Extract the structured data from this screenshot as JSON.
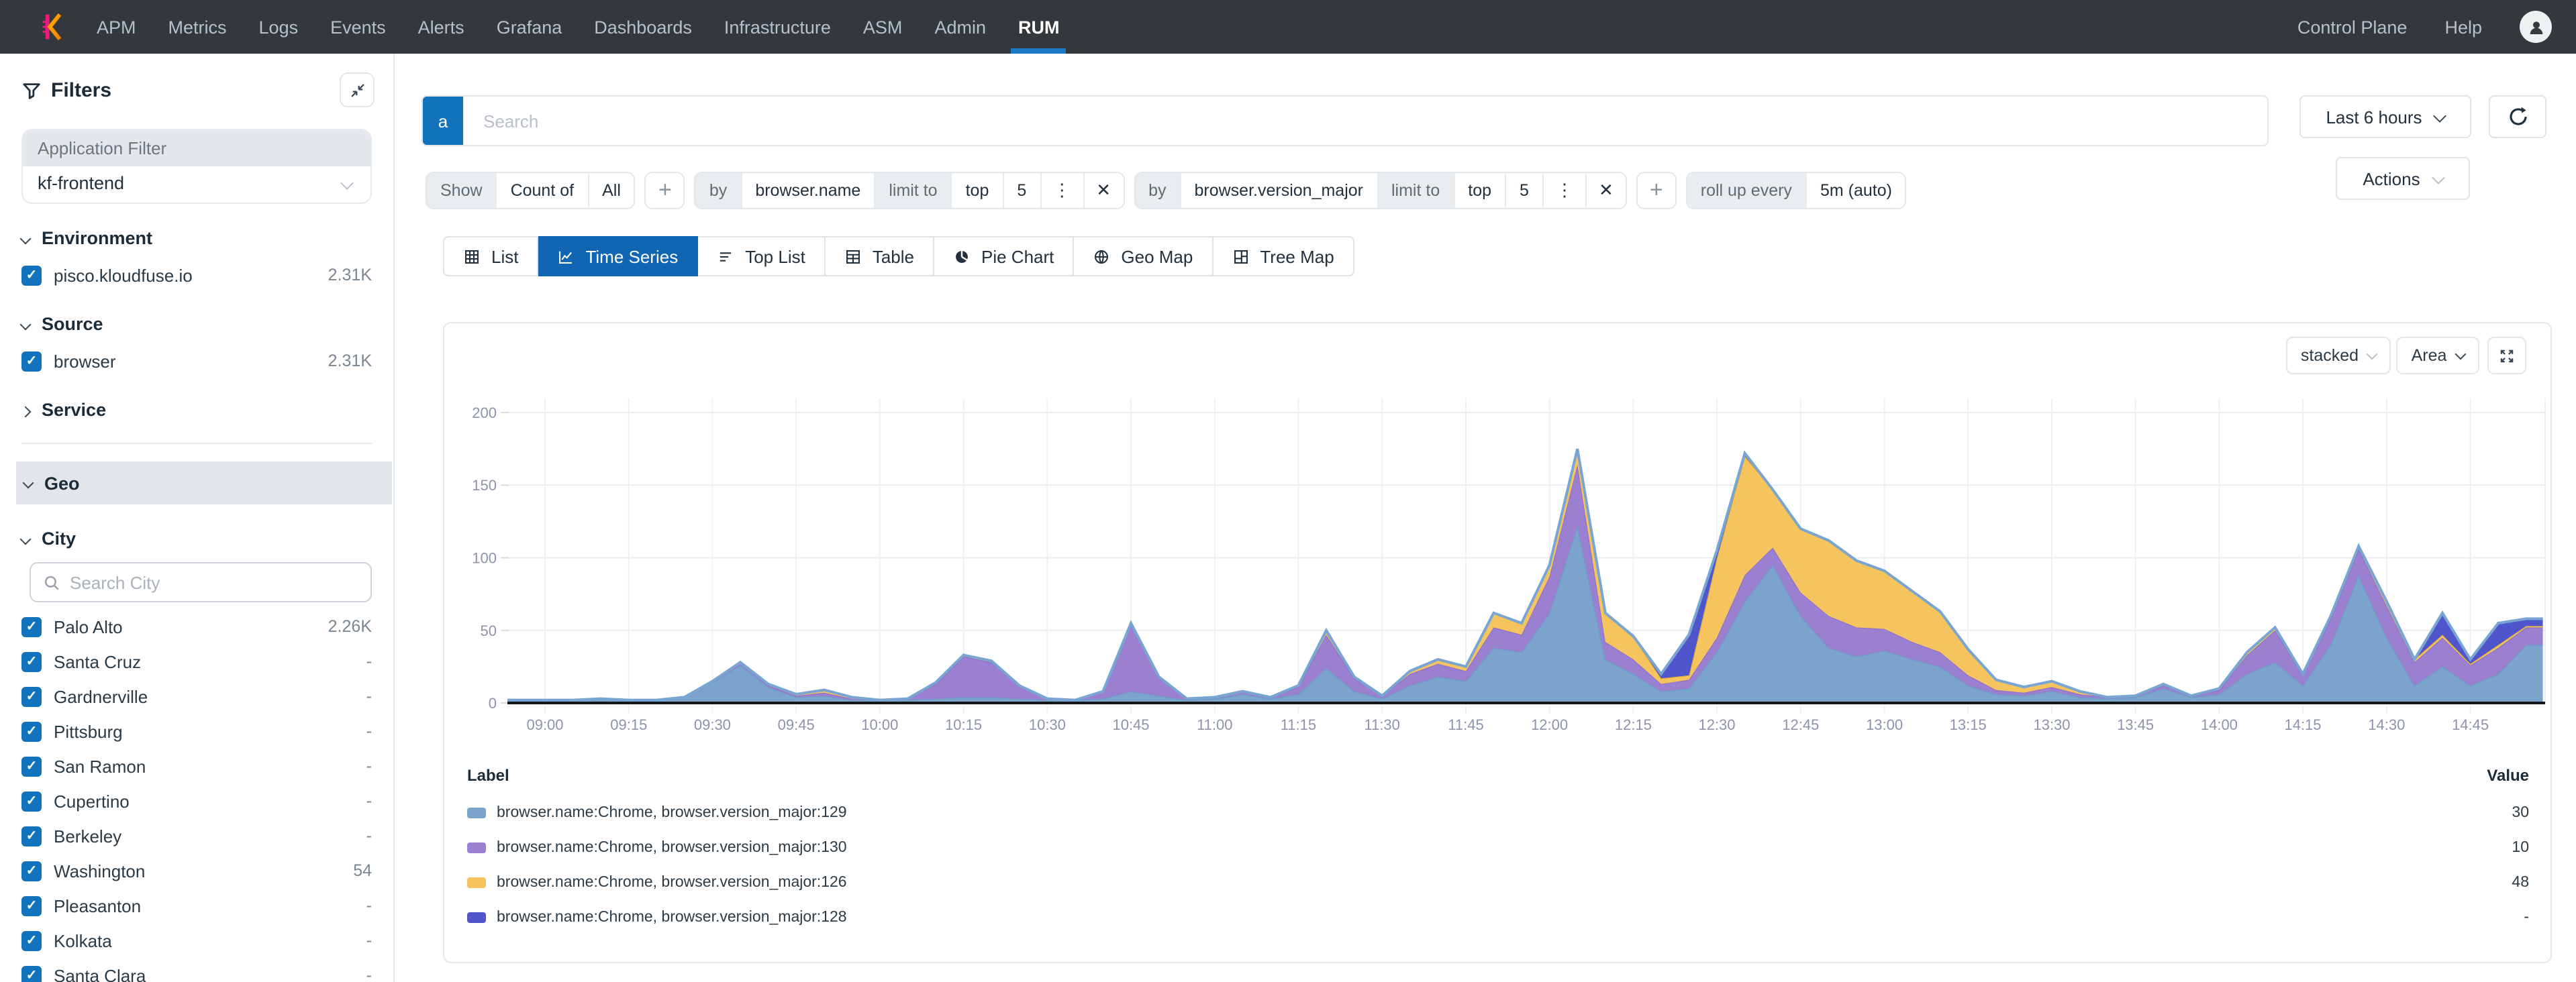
{
  "nav": {
    "items": [
      "APM",
      "Metrics",
      "Logs",
      "Events",
      "Alerts",
      "Grafana",
      "Dashboards",
      "Infrastructure",
      "ASM",
      "Admin",
      "RUM"
    ],
    "active": "RUM",
    "right_items": [
      "Control Plane",
      "Help"
    ],
    "accent": "#1b79c4"
  },
  "sidebar": {
    "title": "Filters",
    "app_filter": {
      "label": "Application Filter",
      "value": "kf-frontend"
    },
    "sections": [
      {
        "label": "Environment",
        "expanded": true,
        "rows": [
          {
            "label": "pisco.kloudfuse.io",
            "count": "2.31K",
            "checked": true
          }
        ]
      },
      {
        "label": "Source",
        "expanded": true,
        "rows": [
          {
            "label": "browser",
            "count": "2.31K",
            "checked": true
          }
        ]
      },
      {
        "label": "Service",
        "expanded": false,
        "rows": []
      }
    ],
    "geo": {
      "label": "Geo"
    },
    "city": {
      "label": "City",
      "search_placeholder": "Search City",
      "rows": [
        {
          "label": "Palo Alto",
          "count": "2.26K",
          "checked": true
        },
        {
          "label": "Santa Cruz",
          "count": "-",
          "checked": true
        },
        {
          "label": "Gardnerville",
          "count": "-",
          "checked": true
        },
        {
          "label": "Pittsburg",
          "count": "-",
          "checked": true
        },
        {
          "label": "San Ramon",
          "count": "-",
          "checked": true
        },
        {
          "label": "Cupertino",
          "count": "-",
          "checked": true
        },
        {
          "label": "Berkeley",
          "count": "-",
          "checked": true
        },
        {
          "label": "Washington",
          "count": "54",
          "checked": true
        },
        {
          "label": "Pleasanton",
          "count": "-",
          "checked": true
        },
        {
          "label": "Kolkata",
          "count": "-",
          "checked": true
        },
        {
          "label": "Santa Clara",
          "count": "-",
          "checked": true
        }
      ]
    },
    "checkbox_color": "#1273bd"
  },
  "toolbar": {
    "query_prefix": "a",
    "search_placeholder": "Search",
    "time_range": "Last 6 hours",
    "actions_label": "Actions"
  },
  "query_builder": {
    "groups": [
      {
        "kind": "group",
        "segments": [
          {
            "style": "label",
            "text": "Show"
          },
          {
            "style": "value",
            "text": "Count of"
          },
          {
            "style": "value",
            "text": "All"
          }
        ]
      },
      {
        "kind": "add"
      },
      {
        "kind": "group",
        "segments": [
          {
            "style": "label",
            "text": "by"
          },
          {
            "style": "value",
            "text": "browser.name"
          },
          {
            "style": "label",
            "text": "limit to"
          },
          {
            "style": "value",
            "text": "top"
          },
          {
            "style": "value",
            "text": "5"
          },
          {
            "style": "icon",
            "text": "⋮"
          },
          {
            "style": "icon",
            "text": "✕"
          }
        ]
      },
      {
        "kind": "group",
        "segments": [
          {
            "style": "label",
            "text": "by"
          },
          {
            "style": "value",
            "text": "browser.version_major"
          },
          {
            "style": "label",
            "text": "limit to"
          },
          {
            "style": "value",
            "text": "top"
          },
          {
            "style": "value",
            "text": "5"
          },
          {
            "style": "icon",
            "text": "⋮"
          },
          {
            "style": "icon",
            "text": "✕"
          }
        ]
      },
      {
        "kind": "add"
      },
      {
        "kind": "group",
        "segments": [
          {
            "style": "label",
            "text": "roll up every"
          },
          {
            "style": "value",
            "text": "5m (auto)"
          }
        ]
      }
    ]
  },
  "tabs": [
    {
      "label": "List",
      "icon": "grid",
      "active": false
    },
    {
      "label": "Time Series",
      "icon": "timeseries",
      "active": true
    },
    {
      "label": "Top List",
      "icon": "toplist",
      "active": false
    },
    {
      "label": "Table",
      "icon": "table",
      "active": false
    },
    {
      "label": "Pie Chart",
      "icon": "pie",
      "active": false
    },
    {
      "label": "Geo Map",
      "icon": "globe",
      "active": false
    },
    {
      "label": "Tree Map",
      "icon": "treemap",
      "active": false
    }
  ],
  "chart_controls": {
    "mode": "stacked",
    "type": "Area",
    "active_tab_color": "#1166b3"
  },
  "chart_data": {
    "type": "area",
    "stacked": true,
    "title": "",
    "xlabel": "",
    "ylabel": "",
    "ylim": [
      0,
      200
    ],
    "y_ticks": [
      0,
      50,
      100,
      150,
      200
    ],
    "x_ticks": [
      "09:00",
      "09:15",
      "09:30",
      "09:45",
      "10:00",
      "10:15",
      "10:30",
      "10:45",
      "11:00",
      "11:15",
      "11:30",
      "11:45",
      "12:00",
      "12:15",
      "12:30",
      "12:45",
      "13:00",
      "13:15",
      "13:30",
      "13:45",
      "14:00",
      "14:15",
      "14:30",
      "14:45"
    ],
    "rollup_minutes": 5,
    "minutes": [
      -10,
      -5,
      0,
      5,
      10,
      15,
      20,
      25,
      30,
      35,
      40,
      45,
      50,
      55,
      60,
      65,
      70,
      75,
      80,
      85,
      90,
      95,
      100,
      105,
      110,
      115,
      120,
      125,
      130,
      135,
      140,
      145,
      150,
      155,
      160,
      165,
      170,
      175,
      180,
      185,
      190,
      195,
      200,
      205,
      210,
      215,
      220,
      225,
      230,
      235,
      240,
      245,
      250,
      255,
      260,
      265,
      270,
      275,
      280,
      285,
      290,
      295,
      300,
      305,
      310,
      315,
      320,
      325,
      330,
      335,
      340,
      345,
      350,
      355,
      358
    ],
    "series": [
      {
        "name": "browser.name:Chrome, browser.version_major:129",
        "color": "#7ba3cc",
        "line": "#6d9bc8",
        "values": [
          2,
          2,
          2,
          2,
          2,
          2,
          2,
          4,
          14,
          26,
          11,
          4,
          5,
          2,
          2,
          2,
          3,
          4,
          4,
          3,
          2,
          2,
          3,
          8,
          5,
          2,
          3,
          6,
          3,
          6,
          24,
          8,
          3,
          12,
          18,
          15,
          38,
          35,
          62,
          122,
          30,
          20,
          8,
          10,
          35,
          70,
          95,
          60,
          38,
          32,
          36,
          30,
          25,
          12,
          6,
          5,
          8,
          4,
          3,
          4,
          10,
          4,
          6,
          20,
          28,
          12,
          40,
          88,
          45,
          12,
          25,
          12,
          20,
          40,
          40
        ]
      },
      {
        "name": "browser.name:Chrome, browser.version_major:130",
        "color": "#9b7fd1",
        "line": "#8d6fc9",
        "values": [
          0,
          0,
          0,
          0,
          1,
          0,
          0,
          0,
          1,
          2,
          1,
          1,
          2,
          1,
          0,
          1,
          10,
          28,
          24,
          9,
          1,
          0,
          5,
          46,
          13,
          1,
          1,
          2,
          1,
          5,
          23,
          9,
          2,
          8,
          9,
          7,
          14,
          12,
          25,
          42,
          12,
          10,
          5,
          6,
          10,
          18,
          12,
          16,
          22,
          20,
          15,
          12,
          10,
          7,
          3,
          2,
          3,
          2,
          1,
          1,
          2,
          1,
          3,
          13,
          22,
          7,
          18,
          18,
          22,
          16,
          20,
          14,
          18,
          12,
          12
        ]
      },
      {
        "name": "browser.name:Chrome, browser.version_major:126",
        "color": "#f6c45e",
        "line": "#d9a93c",
        "values": [
          0,
          0,
          0,
          0,
          0,
          0,
          0,
          0,
          0,
          0,
          1,
          1,
          2,
          1,
          0,
          0,
          1,
          1,
          1,
          0,
          0,
          0,
          0,
          1,
          0,
          0,
          0,
          0,
          0,
          1,
          3,
          1,
          0,
          2,
          3,
          3,
          10,
          8,
          8,
          11,
          20,
          16,
          4,
          3,
          55,
          82,
          40,
          44,
          52,
          46,
          40,
          35,
          28,
          18,
          7,
          4,
          4,
          2,
          0,
          0,
          1,
          0,
          1,
          2,
          2,
          1,
          2,
          2,
          3,
          2,
          2,
          1,
          2,
          1,
          1
        ]
      },
      {
        "name": "browser.name:Chrome, browser.version_major:128",
        "color": "#4f55cb",
        "line": "#4347b8",
        "values": [
          0,
          0,
          0,
          0,
          0,
          0,
          0,
          0,
          0,
          0,
          0,
          0,
          0,
          0,
          0,
          0,
          0,
          0,
          0,
          0,
          0,
          0,
          0,
          0,
          0,
          0,
          0,
          0,
          0,
          0,
          0,
          0,
          0,
          0,
          0,
          0,
          0,
          0,
          0,
          0,
          0,
          0,
          3,
          28,
          5,
          2,
          0,
          0,
          0,
          0,
          0,
          0,
          0,
          0,
          0,
          0,
          0,
          0,
          0,
          0,
          0,
          0,
          0,
          0,
          0,
          0,
          0,
          0,
          0,
          0,
          15,
          3,
          15,
          5,
          5
        ]
      }
    ],
    "edge_color": "#79a5d3",
    "axis_color": "#13171b",
    "grid_color": "#ececf2",
    "tick_label_color": "#8e93aa",
    "legend_position": "bottom-table"
  },
  "legend": {
    "label_header": "Label",
    "value_header": "Value",
    "rows": [
      {
        "label": "browser.name:Chrome, browser.version_major:129",
        "value": "30",
        "color": "#7ba3cc"
      },
      {
        "label": "browser.name:Chrome, browser.version_major:130",
        "value": "10",
        "color": "#9b7fd1"
      },
      {
        "label": "browser.name:Chrome, browser.version_major:126",
        "value": "48",
        "color": "#f6c45e"
      },
      {
        "label": "browser.name:Chrome, browser.version_major:128",
        "value": "-",
        "color": "#4f55cb"
      }
    ]
  }
}
